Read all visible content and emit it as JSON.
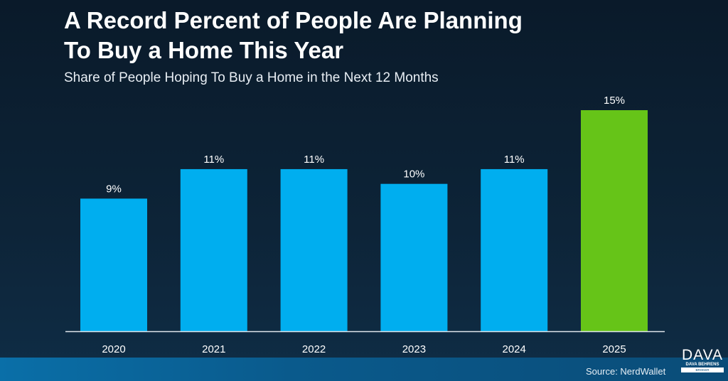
{
  "chart_data": {
    "type": "bar",
    "title": "A Record Percent of People Are Planning To Buy a Home This Year",
    "subtitle": "Share of People Hoping To Buy a Home in the Next 12 Months",
    "categories": [
      "2020",
      "2021",
      "2022",
      "2023",
      "2024",
      "2025"
    ],
    "values": [
      9,
      11,
      11,
      10,
      11,
      15
    ],
    "data_labels": [
      "9%",
      "11%",
      "11%",
      "10%",
      "11%",
      "15%"
    ],
    "unit": "%",
    "ylim": [
      0,
      15
    ],
    "grid": false,
    "colors": {
      "default": "#00aeef",
      "highlight": "#66c418"
    },
    "highlight_index": 5
  },
  "title_lines": [
    "A Record Percent of People Are Planning",
    "To Buy a Home This Year"
  ],
  "source": "Source: NerdWallet",
  "logo": {
    "main": "DAVA",
    "name": "DAVA BEHRENS",
    "role": "BROKER"
  }
}
